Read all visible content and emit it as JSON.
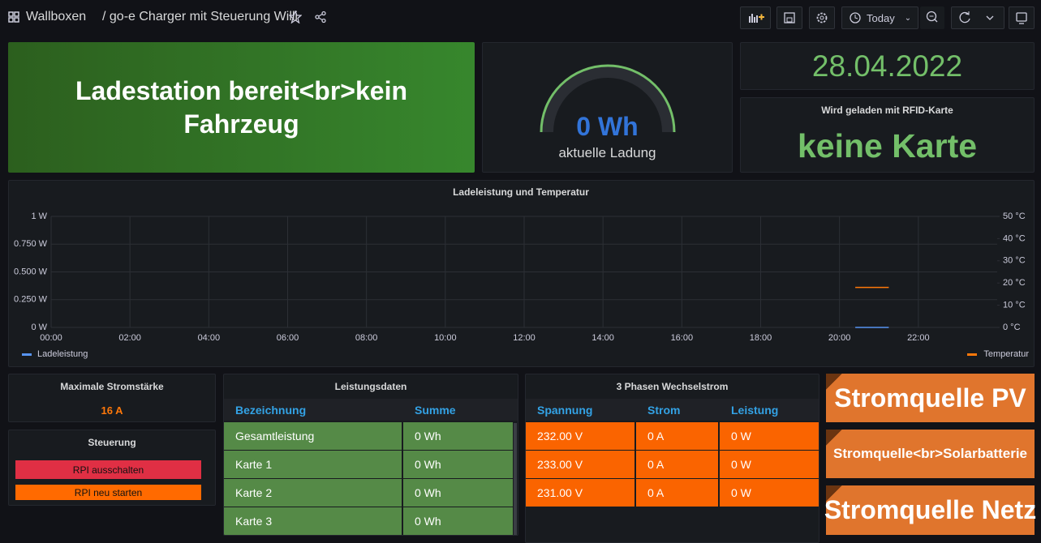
{
  "header": {
    "breadcrumb": "Wallboxen",
    "title": "/ go-e Charger mit Steuerung Willi",
    "time_range": "Today"
  },
  "status_panel": {
    "text": "Ladestation bereit<br>kein Fahrzeug"
  },
  "gauge_panel": {
    "value": "0 Wh",
    "label": "aktuelle Ladung"
  },
  "date_panel": {
    "value": "28.04.2022"
  },
  "rfid_panel": {
    "title": "Wird geladen mit RFID-Karte",
    "value": "keine Karte"
  },
  "chart_data": {
    "type": "line",
    "title": "Ladeleistung und Temperatur",
    "xlim": [
      0,
      24
    ],
    "xticks": [
      {
        "value": 0,
        "label": "00:00"
      },
      {
        "value": 2,
        "label": "02:00"
      },
      {
        "value": 4,
        "label": "04:00"
      },
      {
        "value": 6,
        "label": "06:00"
      },
      {
        "value": 8,
        "label": "08:00"
      },
      {
        "value": 10,
        "label": "10:00"
      },
      {
        "value": 12,
        "label": "12:00"
      },
      {
        "value": 14,
        "label": "14:00"
      },
      {
        "value": 16,
        "label": "16:00"
      },
      {
        "value": 18,
        "label": "18:00"
      },
      {
        "value": 20,
        "label": "20:00"
      },
      {
        "value": 22,
        "label": "22:00"
      }
    ],
    "ylim": [
      0,
      1
    ],
    "yticks": [
      {
        "value": 0,
        "label": "0 W"
      },
      {
        "value": 0.25,
        "label": "0.250 W"
      },
      {
        "value": 0.5,
        "label": "0.500 W"
      },
      {
        "value": 0.75,
        "label": "0.750 W"
      },
      {
        "value": 1,
        "label": "1 W"
      }
    ],
    "y2lim": [
      0,
      50
    ],
    "y2ticks": [
      {
        "value": 0,
        "label": "0 °C"
      },
      {
        "value": 10,
        "label": "10 °C"
      },
      {
        "value": 20,
        "label": "20 °C"
      },
      {
        "value": 30,
        "label": "30 °C"
      },
      {
        "value": 40,
        "label": "40 °C"
      },
      {
        "value": 50,
        "label": "50 °C"
      }
    ],
    "grid": true,
    "legend": "bottom",
    "series": [
      {
        "name": "Ladeleistung",
        "color": "#5794f2",
        "x": [
          20.4,
          21.25
        ],
        "values": [
          0,
          0
        ]
      },
      {
        "name": "Temperatur",
        "color": "#ff780a",
        "axis": "y2",
        "x": [
          20.4,
          21.25
        ],
        "values": [
          18,
          18
        ]
      }
    ]
  },
  "max_current_panel": {
    "title": "Maximale Stromstärke",
    "value": "16 A"
  },
  "control_panel": {
    "title": "Steuerung",
    "buttons": [
      "RPI ausschalten",
      "RPI neu starten"
    ]
  },
  "power_table": {
    "title": "Leistungsdaten",
    "columns": [
      "Bezeichnung",
      "Summe"
    ],
    "rows": [
      [
        "Gesamtleistung",
        "0 Wh"
      ],
      [
        "Karte 1",
        "0 Wh"
      ],
      [
        "Karte 2",
        "0 Wh"
      ],
      [
        "Karte 3",
        "0 Wh"
      ]
    ]
  },
  "phase_table": {
    "title": "3 Phasen Wechselstrom",
    "columns": [
      "Spannung",
      "Strom",
      "Leistung"
    ],
    "rows": [
      [
        "232.00 V",
        "0 A",
        "0 W"
      ],
      [
        "233.00 V",
        "0 A",
        "0 W"
      ],
      [
        "231.00 V",
        "0 A",
        "0 W"
      ]
    ]
  },
  "source_panels": [
    "Stromquelle PV",
    "Stromquelle<br>Solarbatterie",
    "Stromquelle Netz"
  ]
}
